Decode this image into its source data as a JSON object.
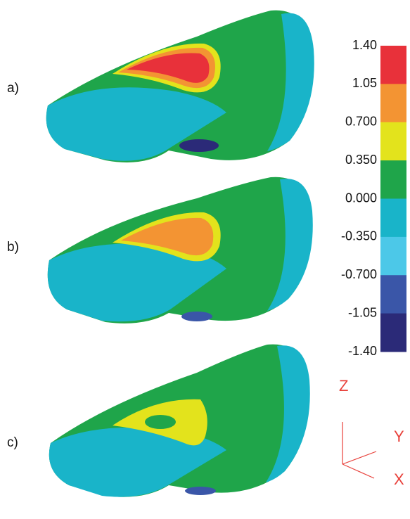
{
  "panels": [
    {
      "label": "a)"
    },
    {
      "label": "b)"
    },
    {
      "label": "c)"
    }
  ],
  "colorbar": {
    "range": [
      -1.4,
      1.4
    ],
    "ticks": [
      {
        "value": 1.4,
        "label": "1.40"
      },
      {
        "value": 1.05,
        "label": "1.05"
      },
      {
        "value": 0.7,
        "label": "0.700"
      },
      {
        "value": 0.35,
        "label": "0.350"
      },
      {
        "value": 0,
        "label": "0.000"
      },
      {
        "value": -0.35,
        "label": "-0.350"
      },
      {
        "value": -0.7,
        "label": "-0.700"
      },
      {
        "value": -1.05,
        "label": "-1.05"
      },
      {
        "value": -1.4,
        "label": "-1.40"
      }
    ],
    "colors": [
      "#e8313a",
      "#f39433",
      "#e3e31c",
      "#1fa54a",
      "#19b4c9",
      "#4cc8e8",
      "#3a56a8",
      "#2b2a78"
    ]
  },
  "axes": {
    "z": "Z",
    "y": "Y",
    "x": "X",
    "color": "#e8403a"
  }
}
